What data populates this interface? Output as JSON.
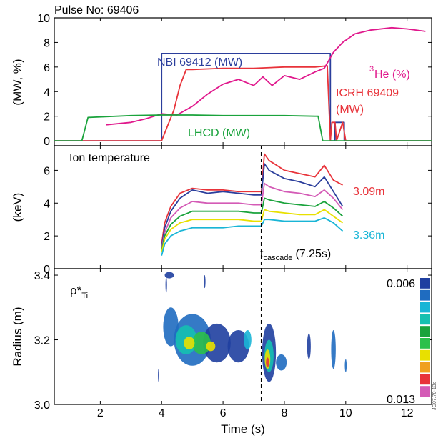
{
  "figure": {
    "pulse_label": "Pulse No: 69406",
    "xlabel": "Time (s)",
    "watermark": "JG07.70-13c",
    "x_ticks": [
      2,
      4,
      6,
      8,
      10,
      12
    ],
    "xlim": [
      0.5,
      12.8
    ]
  },
  "chart_data": [
    {
      "type": "line",
      "ylabel": "(MW, %)",
      "ylim": [
        -0.4,
        10
      ],
      "y_ticks": [
        0,
        2,
        4,
        6,
        8,
        10
      ],
      "grid": false,
      "labels": {
        "nbi": "NBI 69412 (MW)",
        "he3_sup": "3",
        "he3": "He (%)",
        "icrh_1": "ICRH 69409",
        "icrh_2": "(MW)",
        "lhcd": "LHCD (MW)"
      },
      "series": [
        {
          "name": "NBI 69412 (MW)",
          "color": "#2b3e9c",
          "x": [
            0.5,
            4.0,
            4.0,
            9.5,
            9.5,
            9.65,
            9.65,
            9.95,
            9.95,
            12.8
          ],
          "y": [
            0,
            0,
            7.1,
            7.1,
            0,
            0,
            1.5,
            1.5,
            0,
            0
          ]
        },
        {
          "name": "ICRH 69409 (MW)",
          "color": "#e8333a",
          "x": [
            0.5,
            4.0,
            4.4,
            4.6,
            4.8,
            5.0,
            6.0,
            7.0,
            8.0,
            9.0,
            9.4,
            9.5,
            9.55,
            9.65,
            9.7,
            9.9,
            10.0,
            12.8
          ],
          "y": [
            0,
            0,
            2.5,
            4.5,
            5.8,
            5.8,
            5.9,
            5.9,
            6.0,
            6.0,
            6.1,
            0,
            1.5,
            1.5,
            0,
            1.5,
            0,
            0
          ]
        },
        {
          "name": "He (%)",
          "color": "#e0188c",
          "x": [
            2.2,
            3.0,
            3.5,
            4.0,
            4.5,
            5.0,
            5.5,
            6.0,
            6.5,
            7.0,
            7.3,
            7.6,
            8.0,
            8.5,
            9.0,
            9.3,
            9.6,
            9.9,
            10.3,
            10.8,
            11.5,
            12.0,
            12.6
          ],
          "y": [
            1.3,
            1.5,
            1.8,
            2.2,
            2.1,
            2.8,
            3.8,
            4.6,
            5.0,
            4.5,
            5.2,
            4.5,
            5.3,
            5.0,
            5.6,
            5.9,
            7.2,
            8.0,
            8.7,
            9.0,
            9.2,
            9.1,
            8.9
          ]
        },
        {
          "name": "LHCD (MW)",
          "color": "#1aa33c",
          "x": [
            0.5,
            1.4,
            1.6,
            3.0,
            4.0,
            5.0,
            6.0,
            7.0,
            8.0,
            9.0,
            9.1,
            9.25,
            12.8
          ],
          "y": [
            0,
            0,
            1.9,
            2.05,
            2.1,
            2.1,
            2.05,
            2.05,
            2.05,
            2.0,
            2.0,
            0,
            0
          ]
        }
      ]
    },
    {
      "type": "line",
      "title": "Ion temperature",
      "ylabel": "(keV)",
      "ylim": [
        0,
        7.5
      ],
      "y_ticks": [
        0,
        2,
        4,
        6
      ],
      "grid": false,
      "vline": {
        "x": 7.25
      },
      "annotation": {
        "t_main": "t",
        "t_sub": "cascade",
        "t_value": "(7.25s)"
      },
      "label_top": "3.09m",
      "label_bottom": "3.36m",
      "series": [
        {
          "name": "3.09m",
          "color": "#e8333a",
          "x": [
            4.0,
            4.1,
            4.3,
            4.6,
            5.0,
            5.5,
            6.0,
            6.5,
            7.0,
            7.25,
            7.35,
            7.5,
            8.0,
            8.5,
            9.0,
            9.3,
            9.6,
            9.9
          ],
          "y": [
            1.5,
            2.8,
            3.8,
            4.6,
            4.9,
            4.8,
            4.8,
            4.7,
            4.7,
            4.7,
            7.0,
            6.6,
            6.0,
            5.8,
            5.6,
            6.3,
            5.4,
            5.1
          ]
        },
        {
          "name": "",
          "color": "#2b3e9c",
          "x": [
            4.0,
            4.1,
            4.3,
            4.6,
            5.0,
            5.5,
            6.0,
            6.5,
            7.0,
            7.25,
            7.35,
            7.5,
            8.0,
            8.5,
            9.0,
            9.3,
            9.6,
            9.9
          ],
          "y": [
            1.3,
            2.5,
            3.5,
            4.3,
            4.8,
            4.6,
            4.7,
            4.6,
            4.5,
            4.5,
            6.4,
            6.0,
            5.5,
            5.3,
            5.0,
            5.6,
            4.7,
            3.8
          ]
        },
        {
          "name": "",
          "color": "#d45bb6",
          "x": [
            4.0,
            4.1,
            4.3,
            4.6,
            5.0,
            5.5,
            6.0,
            6.5,
            7.0,
            7.25,
            7.35,
            7.5,
            8.0,
            8.5,
            9.0,
            9.3,
            9.6,
            9.9
          ],
          "y": [
            1.2,
            2.2,
            3.1,
            3.7,
            4.1,
            4.0,
            4.0,
            4.0,
            3.9,
            3.9,
            5.2,
            5.0,
            4.7,
            4.6,
            4.4,
            4.8,
            4.3,
            3.6
          ]
        },
        {
          "name": "",
          "color": "#1aa33c",
          "x": [
            4.0,
            4.1,
            4.3,
            4.6,
            5.0,
            5.5,
            6.0,
            6.5,
            7.0,
            7.25,
            7.35,
            7.5,
            8.0,
            8.5,
            9.0,
            9.3,
            9.6,
            9.9
          ],
          "y": [
            1.1,
            2.0,
            2.7,
            3.2,
            3.5,
            3.5,
            3.5,
            3.5,
            3.4,
            3.4,
            4.3,
            4.2,
            4.0,
            3.9,
            3.8,
            4.1,
            3.7,
            3.2
          ]
        },
        {
          "name": "",
          "color": "#e8e000",
          "x": [
            4.0,
            4.1,
            4.3,
            4.6,
            5.0,
            5.5,
            6.0,
            6.5,
            7.0,
            7.25,
            7.35,
            7.5,
            8.0,
            8.5,
            9.0,
            9.3,
            9.6,
            9.9
          ],
          "y": [
            1.0,
            1.8,
            2.4,
            2.8,
            3.0,
            3.0,
            3.0,
            3.0,
            2.9,
            2.9,
            3.6,
            3.5,
            3.4,
            3.3,
            3.3,
            3.6,
            3.2,
            2.8
          ]
        },
        {
          "name": "3.36m",
          "color": "#19b5d6",
          "x": [
            4.0,
            4.1,
            4.3,
            4.6,
            5.0,
            5.5,
            6.0,
            6.5,
            7.0,
            7.25,
            7.35,
            7.5,
            8.0,
            8.5,
            9.0,
            9.3,
            9.6,
            9.9
          ],
          "y": [
            0.8,
            1.5,
            2.0,
            2.3,
            2.5,
            2.5,
            2.5,
            2.6,
            2.6,
            2.6,
            3.0,
            3.0,
            2.9,
            2.9,
            2.9,
            3.1,
            2.8,
            2.3
          ]
        }
      ]
    },
    {
      "type": "heatmap",
      "title_main": "ρ*",
      "title_sub": "Ti",
      "ylabel": "Radius (m)",
      "ylim": [
        3.0,
        3.42
      ],
      "y_ticks": [
        3.0,
        3.2,
        3.4
      ],
      "y_tick_labels": [
        "3.0",
        "3.2",
        "3.4"
      ],
      "vline": {
        "x": 7.25
      },
      "colorbar": {
        "label_top": "0.006",
        "label_bottom": "0.013",
        "colors": [
          "#1f3fa0",
          "#1f6cc0",
          "#19b5d6",
          "#15c0b0",
          "#1aa33c",
          "#2bc04a",
          "#e8e000",
          "#f0a020",
          "#e8333a",
          "#d45bb6"
        ]
      },
      "blobs": [
        {
          "x": 4.3,
          "y": 3.24,
          "w": 0.5,
          "h": 0.12,
          "level": 1
        },
        {
          "x": 5.0,
          "y": 3.2,
          "w": 1.2,
          "h": 0.16,
          "level": 1
        },
        {
          "x": 5.8,
          "y": 3.19,
          "w": 0.9,
          "h": 0.12,
          "level": 0
        },
        {
          "x": 6.5,
          "y": 3.18,
          "w": 0.7,
          "h": 0.1,
          "level": 0
        },
        {
          "x": 4.8,
          "y": 3.2,
          "w": 0.7,
          "h": 0.09,
          "level": 3
        },
        {
          "x": 5.3,
          "y": 3.19,
          "w": 0.6,
          "h": 0.07,
          "level": 5
        },
        {
          "x": 4.9,
          "y": 3.19,
          "w": 0.35,
          "h": 0.04,
          "level": 6
        },
        {
          "x": 5.6,
          "y": 3.18,
          "w": 0.3,
          "h": 0.03,
          "level": 6
        },
        {
          "x": 6.8,
          "y": 3.2,
          "w": 0.25,
          "h": 0.06,
          "level": 2
        },
        {
          "x": 7.5,
          "y": 3.16,
          "w": 0.45,
          "h": 0.18,
          "level": 0
        },
        {
          "x": 7.5,
          "y": 3.15,
          "w": 0.3,
          "h": 0.1,
          "level": 3
        },
        {
          "x": 7.45,
          "y": 3.14,
          "w": 0.18,
          "h": 0.06,
          "level": 6
        },
        {
          "x": 7.45,
          "y": 3.13,
          "w": 0.1,
          "h": 0.03,
          "level": 8
        },
        {
          "x": 7.9,
          "y": 3.13,
          "w": 0.35,
          "h": 0.05,
          "level": 1
        },
        {
          "x": 8.8,
          "y": 3.18,
          "w": 0.12,
          "h": 0.08,
          "level": 0
        },
        {
          "x": 9.6,
          "y": 3.17,
          "w": 0.15,
          "h": 0.12,
          "level": 1
        },
        {
          "x": 3.9,
          "y": 3.09,
          "w": 0.04,
          "h": 0.04,
          "level": 0
        },
        {
          "x": 4.15,
          "y": 3.37,
          "w": 0.05,
          "h": 0.05,
          "level": 0
        },
        {
          "x": 5.4,
          "y": 3.38,
          "w": 0.06,
          "h": 0.04,
          "level": 0
        },
        {
          "x": 4.25,
          "y": 3.4,
          "w": 0.3,
          "h": 0.02,
          "level": 0
        },
        {
          "x": 10.0,
          "y": 3.12,
          "w": 0.06,
          "h": 0.04,
          "level": 1
        }
      ]
    }
  ]
}
